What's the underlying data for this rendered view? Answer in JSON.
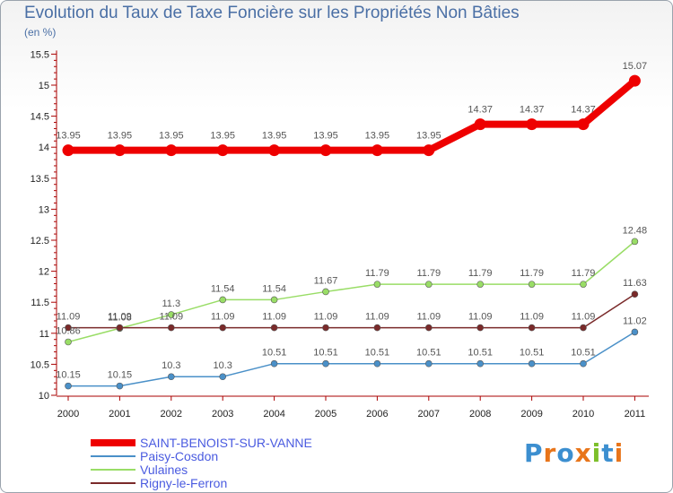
{
  "header": {
    "title": "Evolution du Taux de Taxe Foncière sur les Propriétés Non Bâties",
    "unit": "(en %)"
  },
  "logo": {
    "text": "Proxiti",
    "colors": [
      "#3c8fd0",
      "#e8751a",
      "#3c8fd0",
      "#e8751a",
      "#7cbf2a",
      "#3c8fd0",
      "#e8751a"
    ]
  },
  "chart_data": {
    "type": "line",
    "title": "Evolution du Taux de Taxe Foncière sur les Propriétés Non Bâties",
    "ylabel": "(en %)",
    "xlabel": "",
    "categories": [
      "2000",
      "2001",
      "2002",
      "2003",
      "2004",
      "2005",
      "2006",
      "2007",
      "2008",
      "2009",
      "2010",
      "2011"
    ],
    "ylim": [
      10,
      15.5
    ],
    "yticks": [
      "10",
      "10.5",
      "11",
      "11.5",
      "12",
      "12.5",
      "13",
      "13.5",
      "14",
      "14.5",
      "15",
      "15.5"
    ],
    "grid": false,
    "series": [
      {
        "name": "SAINT-BENOIST-SUR-VANNE",
        "color": "#ee0000",
        "values": [
          13.95,
          13.95,
          13.95,
          13.95,
          13.95,
          13.95,
          13.95,
          13.95,
          14.37,
          14.37,
          14.37,
          15.07
        ],
        "labels": [
          "13.95",
          "13.95",
          "13.95",
          "13.95",
          "13.95",
          "13.95",
          "13.95",
          "13.95",
          "14.37",
          "14.37",
          "14.37",
          "15.07"
        ]
      },
      {
        "name": "Paisy-Cosdon",
        "color": "#4a90c8",
        "values": [
          10.15,
          10.15,
          10.3,
          10.3,
          10.51,
          10.51,
          10.51,
          10.51,
          10.51,
          10.51,
          10.51,
          11.02
        ],
        "labels": [
          "10.15",
          "10.15",
          "10.3",
          "10.3",
          "10.51",
          "10.51",
          "10.51",
          "10.51",
          "10.51",
          "10.51",
          "10.51",
          "11.02"
        ]
      },
      {
        "name": "Vulaines",
        "color": "#99dd66",
        "values": [
          10.86,
          11.08,
          11.3,
          11.54,
          11.54,
          11.67,
          11.79,
          11.79,
          11.79,
          11.79,
          11.79,
          12.48
        ],
        "labels": [
          "10.86",
          "11.08",
          "11.3",
          "11.54",
          "11.54",
          "11.67",
          "11.79",
          "11.79",
          "11.79",
          "11.79",
          "11.79",
          "12.48"
        ]
      },
      {
        "name": "Rigny-le-Ferron",
        "color": "#7a2a2a",
        "values": [
          11.09,
          11.09,
          11.09,
          11.09,
          11.09,
          11.09,
          11.09,
          11.09,
          11.09,
          11.09,
          11.09,
          11.63
        ],
        "labels": [
          "11.09",
          "11.09",
          "11.09",
          "11.09",
          "11.09",
          "11.09",
          "11.09",
          "11.09",
          "11.09",
          "11.09",
          "11.09",
          "11.63"
        ]
      }
    ]
  }
}
